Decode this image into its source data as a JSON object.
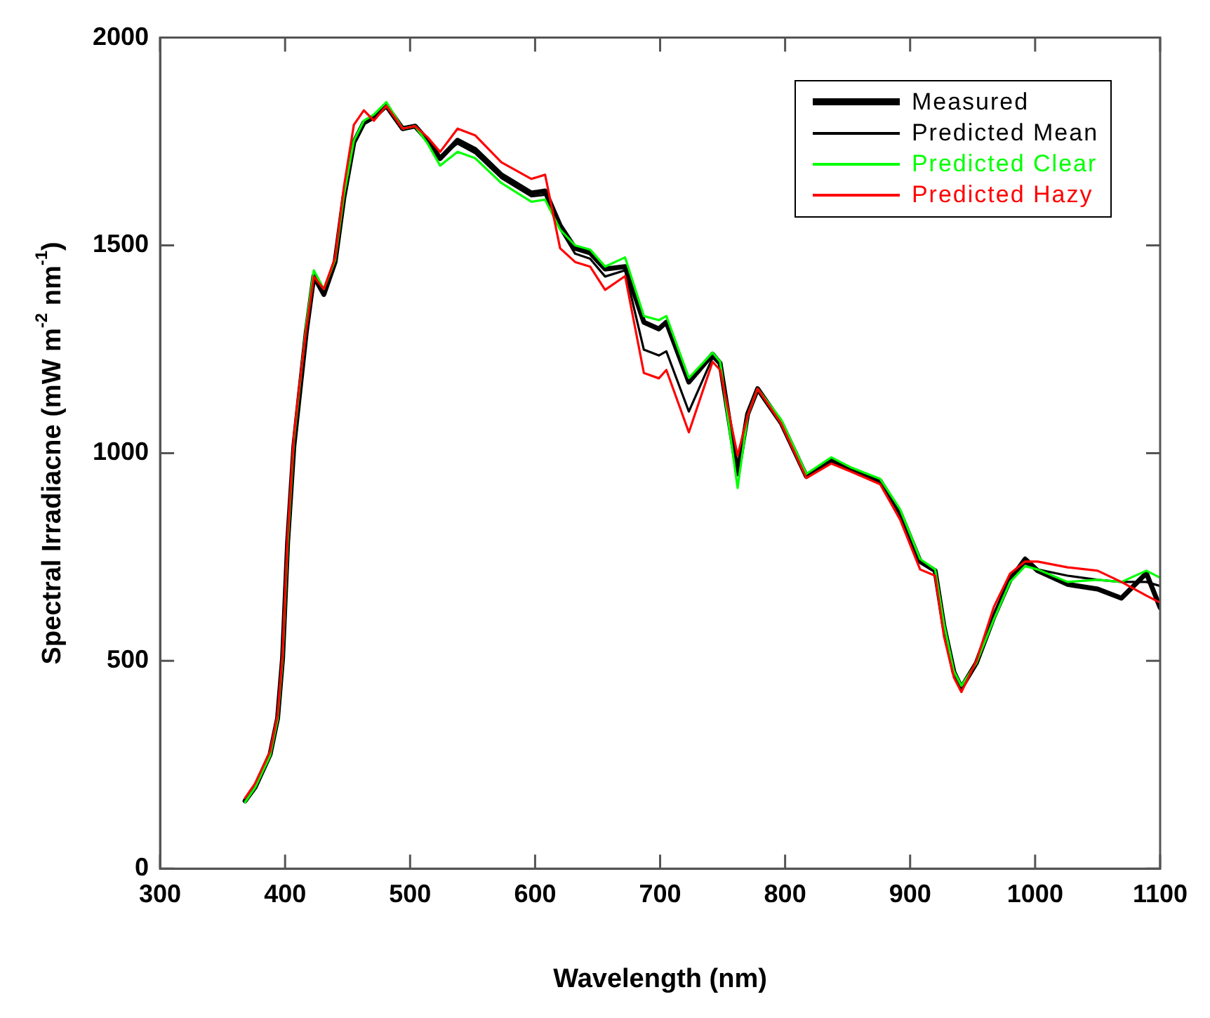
{
  "chart_data": {
    "type": "line",
    "xlabel": "Wavelength (nm)",
    "ylabel": "Spectral Irradiacne (mW m$^{-2}$ nm$^{-1}$)",
    "x": [
      368,
      376,
      388,
      394,
      398,
      402,
      407,
      411,
      417,
      423,
      431,
      440,
      447,
      455,
      463,
      471,
      481,
      494,
      504,
      514,
      524,
      538,
      552,
      573,
      597,
      608,
      620,
      632,
      644,
      656,
      672,
      687,
      699,
      705,
      723,
      742,
      748,
      762,
      770,
      778,
      797,
      817,
      837,
      853,
      876,
      892,
      908,
      920,
      927,
      935,
      941,
      953,
      967,
      980,
      992,
      1002,
      1026,
      1050,
      1069,
      1089,
      1100
    ],
    "series": [
      {
        "name": "Measured",
        "color": "#000000",
        "values": [
          163,
          196,
          275,
          362,
          507,
          784,
          1016,
          1127,
          1293,
          1426,
          1382,
          1460,
          1615,
          1748,
          1795,
          1809,
          1836,
          1781,
          1787,
          1753,
          1709,
          1753,
          1731,
          1670,
          1626,
          1631,
          1548,
          1493,
          1482,
          1443,
          1449,
          1315,
          1299,
          1315,
          1171,
          1238,
          1216,
          950,
          1094,
          1155,
          1072,
          944,
          983,
          961,
          933,
          856,
          739,
          717,
          584,
          473,
          435,
          495,
          606,
          695,
          745,
          717,
          684,
          673,
          651,
          711,
          628
        ]
      },
      {
        "name": "Predicted Mean",
        "color": "#000000",
        "values": [
          165,
          198,
          278,
          365,
          510,
          790,
          1020,
          1130,
          1295,
          1415,
          1390,
          1462,
          1615,
          1748,
          1798,
          1810,
          1836,
          1781,
          1787,
          1750,
          1715,
          1745,
          1722,
          1662,
          1618,
          1622,
          1540,
          1480,
          1468,
          1425,
          1440,
          1249,
          1235,
          1245,
          1100,
          1230,
          1212,
          960,
          1094,
          1155,
          1072,
          944,
          978,
          958,
          933,
          856,
          739,
          717,
          584,
          473,
          435,
          495,
          606,
          700,
          735,
          720,
          705,
          695,
          690,
          690,
          680
        ]
      },
      {
        "name": "Predicted Clear",
        "color": "#00ff00",
        "values": [
          160,
          195,
          272,
          360,
          505,
          780,
          1030,
          null,
          1310,
          1440,
          1395,
          1465,
          1620,
          1752,
          1800,
          1815,
          1845,
          1781,
          1787,
          1745,
          1692,
          1725,
          1710,
          1650,
          1605,
          1610,
          1538,
          1500,
          1490,
          1449,
          1471,
          1330,
          1320,
          1330,
          1181,
          1242,
          1220,
          916,
          1090,
          1155,
          1080,
          950,
          990,
          965,
          938,
          865,
          745,
          720,
          590,
          475,
          440,
          495,
          600,
          690,
          728,
          720,
          690,
          695,
          690,
          717,
          700
        ]
      },
      {
        "name": "Predicted Hazy",
        "color": "#ff0000",
        "values": [
          170,
          205,
          282,
          370,
          515,
          800,
          1040,
          1150,
          1300,
          1425,
          1395,
          1470,
          1640,
          1790,
          1825,
          1800,
          1836,
          1781,
          1787,
          1760,
          1725,
          1781,
          1765,
          1700,
          1660,
          1670,
          1493,
          1460,
          1449,
          1393,
          1426,
          1193,
          1180,
          1200,
          1050,
          1220,
          1200,
          994,
          1090,
          1155,
          1070,
          940,
          975,
          955,
          925,
          840,
          720,
          705,
          560,
          460,
          425,
          500,
          630,
          710,
          739,
          739,
          725,
          717,
          690,
          657,
          640
        ]
      }
    ],
    "xlim": [
      300,
      1100
    ],
    "xticks": [
      300,
      400,
      500,
      600,
      700,
      800,
      900,
      1000,
      1100
    ],
    "ylim": [
      0,
      2000
    ],
    "yticks": [
      0,
      500,
      1000,
      1500,
      2000
    ],
    "legend": "top right",
    "marker": "none",
    "line_style": "solid"
  }
}
